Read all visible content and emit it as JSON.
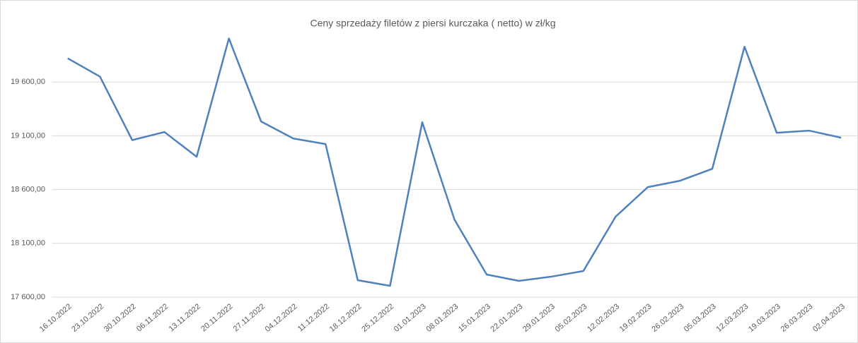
{
  "chart_data": {
    "type": "line",
    "title": "Ceny sprzedaży filetów z piersi kurczaka ( netto) w zł/kg",
    "categories": [
      "16.10.2022",
      "23.10.2022",
      "30.10.2022",
      "06.11.2022",
      "13.11.2022",
      "20.11.2022",
      "27.11.2022",
      "04.12.2022",
      "11.12.2022",
      "18.12.2022",
      "25.12.2022",
      "01.01.2023",
      "08.01.2023",
      "15.01.2023",
      "22.01.2023",
      "29.01.2023",
      "05.02.2023",
      "12.02.2023",
      "19.02.2023",
      "26.02.2023",
      "05.03.2023",
      "12.03.2023",
      "19.03.2023",
      "26.03.2023",
      "02.04.2023"
    ],
    "values": [
      19820,
      19650,
      19060,
      19135,
      18905,
      20005,
      19233,
      19075,
      19023,
      17757,
      17705,
      19226,
      18321,
      17810,
      17751,
      17790,
      17843,
      18348,
      18623,
      18682,
      18793,
      19928,
      19128,
      19148,
      19082
    ],
    "color": "#4f81bd",
    "ylim": [
      17600,
      20100
    ],
    "yticks": [
      {
        "value": 17600,
        "label": "17 600,00"
      },
      {
        "value": 18100,
        "label": "18 100,00"
      },
      {
        "value": 18600,
        "label": "18 600,00"
      },
      {
        "value": 19100,
        "label": "19 100,00"
      },
      {
        "value": 19600,
        "label": "19 600,00"
      }
    ],
    "grid": true
  }
}
